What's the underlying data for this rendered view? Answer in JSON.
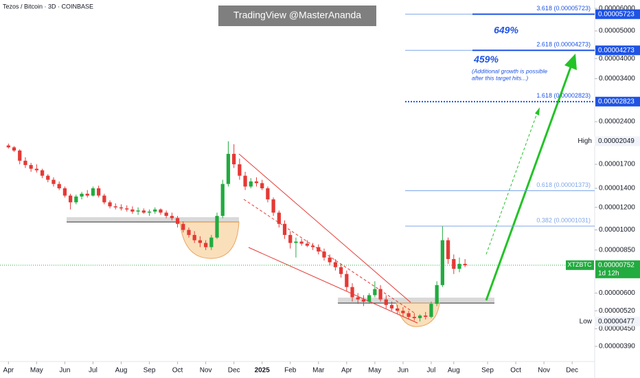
{
  "chart_data": {
    "type": "candlestick",
    "title": "Tezos / Bitcoin · 3D · COINBASE",
    "watermark": "TradingView @MasterAnanda",
    "log_scale": true,
    "up_color": "#22ab3f",
    "down_color": "#e53935",
    "open": [
      1.98e-05,
      1.95e-05,
      1.9e-05,
      1.75e-05,
      1.69e-05,
      1.64e-05,
      1.62e-05,
      1.55e-05,
      1.5e-05,
      1.45e-05,
      1.4e-05,
      1.32e-05,
      1.25e-05,
      1.31e-05,
      1.34e-05,
      1.32e-05,
      1.4e-05,
      1.32e-05,
      1.25e-05,
      1.21e-05,
      1.2e-05,
      1.19e-05,
      1.18e-05,
      1.16e-05,
      1.17e-05,
      1.15e-05,
      1.16e-05,
      1.18e-05,
      1.15e-05,
      1.12e-05,
      1.1e-05,
      1.05e-05,
      1e-05,
      9.6e-06,
      9.2e-06,
      9e-06,
      8.7e-06,
      9.4e-06,
      1.12e-05,
      1.45e-05,
      1.85e-05,
      1.7e-05,
      1.55e-05,
      1.42e-05,
      1.48e-05,
      1.46e-05,
      1.4e-05,
      1.28e-05,
      1.15e-05,
      1.05e-05,
      9.6e-06,
      9e-06,
      9.1e-06,
      8.95e-06,
      8.8e-06,
      8.7e-06,
      8.4e-06,
      8e-06,
      7.7e-06,
      7.4e-06,
      7e-06,
      6.3e-06,
      5.8e-06,
      5.7e-06,
      5.6e-06,
      5.9e-06,
      6.2e-06,
      5.7e-06,
      5.45e-06,
      5.3e-06,
      5.2e-06,
      5.1e-06,
      4.95e-06,
      4.9e-06,
      5e-06,
      4.95e-06,
      5.5e-06,
      6.4e-06,
      9.2e-06,
      7.9e-06,
      7.3e-06,
      7.6e-06
    ],
    "high": [
      2.01e-05,
      1.97e-05,
      1.92e-05,
      1.8e-05,
      1.72e-05,
      1.7e-05,
      1.64e-05,
      1.57e-05,
      1.53e-05,
      1.48e-05,
      1.42e-05,
      1.34e-05,
      1.33e-05,
      1.36e-05,
      1.38e-05,
      1.42e-05,
      1.43e-05,
      1.34e-05,
      1.27e-05,
      1.24e-05,
      1.23e-05,
      1.22e-05,
      1.21e-05,
      1.2e-05,
      1.19e-05,
      1.18e-05,
      1.2e-05,
      1.19e-05,
      1.17e-05,
      1.15e-05,
      1.12e-05,
      1.07e-05,
      1.02e-05,
      9.9e-06,
      9.5e-06,
      9.2e-06,
      9.6e-06,
      1.15e-05,
      1.5e-05,
      2.049e-05,
      2e-05,
      1.78e-05,
      1.6e-05,
      1.52e-05,
      1.53e-05,
      1.5e-05,
      1.42e-05,
      1.3e-05,
      1.17e-05,
      1.08e-05,
      9.9e-06,
      9.4e-06,
      9.3e-06,
      9.2e-06,
      9e-06,
      8.9e-06,
      8.6e-06,
      8.2e-06,
      7.9e-06,
      7.6e-06,
      7.2e-06,
      6.5e-06,
      6e-06,
      5.9e-06,
      6e-06,
      6.6e-06,
      6.4e-06,
      5.9e-06,
      5.6e-06,
      5.45e-06,
      5.35e-06,
      5.2e-06,
      5.1e-06,
      5.05e-06,
      5.15e-06,
      5.6e-06,
      6.6e-06,
      1.03e-05,
      9.4e-06,
      8.2e-06,
      8e-06,
      7.9e-06
    ],
    "low": [
      1.93e-05,
      1.88e-05,
      1.7e-05,
      1.65e-05,
      1.6e-05,
      1.59e-05,
      1.52e-05,
      1.47e-05,
      1.42e-05,
      1.38e-05,
      1.3e-05,
      1.18e-05,
      1.23e-05,
      1.28e-05,
      1.3e-05,
      1.31e-05,
      1.3e-05,
      1.23e-05,
      1.19e-05,
      1.18e-05,
      1.17e-05,
      1.16e-05,
      1.14e-05,
      1.13e-05,
      1.14e-05,
      1.12e-05,
      1.14e-05,
      1.13e-05,
      1.1e-05,
      1.08e-05,
      1.02e-05,
      9.8e-06,
      9.4e-06,
      9e-06,
      8.7e-06,
      8.5e-06,
      8.5e-06,
      9.3e-06,
      1.1e-05,
      1.42e-05,
      1.65e-05,
      1.5e-05,
      1.38e-05,
      1.4e-05,
      1.42e-05,
      1.38e-05,
      1.25e-05,
      1.12e-05,
      1.02e-05,
      9.3e-06,
      8.6e-06,
      8e-06,
      8.8e-06,
      8.7e-06,
      8.5e-06,
      8.2e-06,
      7.8e-06,
      7.5e-06,
      7.2e-06,
      6.8e-06,
      6.1e-06,
      5.6e-06,
      5.5e-06,
      5.4e-06,
      5.5e-06,
      5.8e-06,
      5.6e-06,
      5.3e-06,
      5.2e-06,
      5.05e-06,
      4.95e-06,
      4.85e-06,
      4.8e-06,
      4.77e-06,
      4.85e-06,
      4.9e-06,
      5.4e-06,
      6.3e-06,
      7.6e-06,
      7e-06,
      7.1e-06,
      7.4e-06
    ],
    "close": [
      1.95e-05,
      1.9e-05,
      1.75e-05,
      1.69e-05,
      1.64e-05,
      1.62e-05,
      1.55e-05,
      1.5e-05,
      1.45e-05,
      1.4e-05,
      1.32e-05,
      1.25e-05,
      1.31e-05,
      1.34e-05,
      1.32e-05,
      1.4e-05,
      1.32e-05,
      1.25e-05,
      1.21e-05,
      1.2e-05,
      1.19e-05,
      1.18e-05,
      1.16e-05,
      1.17e-05,
      1.15e-05,
      1.16e-05,
      1.18e-05,
      1.15e-05,
      1.12e-05,
      1.1e-05,
      1.05e-05,
      1e-05,
      9.6e-06,
      9.2e-06,
      9e-06,
      8.7e-06,
      9.4e-06,
      1.12e-05,
      1.45e-05,
      1.85e-05,
      1.7e-05,
      1.55e-05,
      1.42e-05,
      1.48e-05,
      1.46e-05,
      1.4e-05,
      1.28e-05,
      1.15e-05,
      1.05e-05,
      9.6e-06,
      9e-06,
      9.1e-06,
      8.95e-06,
      8.8e-06,
      8.7e-06,
      8.4e-06,
      8e-06,
      7.7e-06,
      7.4e-06,
      7e-06,
      6.3e-06,
      5.8e-06,
      5.7e-06,
      5.6e-06,
      5.9e-06,
      6.2e-06,
      5.7e-06,
      5.45e-06,
      5.3e-06,
      5.2e-06,
      5.1e-06,
      4.95e-06,
      4.9e-06,
      5e-06,
      4.95e-06,
      5.5e-06,
      6.4e-06,
      9.2e-06,
      7.9e-06,
      7.3e-06,
      7.6e-06,
      7.52e-06
    ],
    "xlim": [
      -1.5,
      104
    ],
    "xticks": [
      {
        "value": 0,
        "label": "Apr"
      },
      {
        "value": 5,
        "label": "May"
      },
      {
        "value": 10,
        "label": "Jun"
      },
      {
        "value": 15,
        "label": "Jul"
      },
      {
        "value": 20,
        "label": "Aug"
      },
      {
        "value": 25,
        "label": "Sep"
      },
      {
        "value": 30,
        "label": "Oct"
      },
      {
        "value": 35,
        "label": "Nov"
      },
      {
        "value": 40,
        "label": "Dec"
      },
      {
        "value": 45,
        "label": "2025"
      },
      {
        "value": 50,
        "label": "Feb"
      },
      {
        "value": 55,
        "label": "Mar"
      },
      {
        "value": 60,
        "label": "Apr"
      },
      {
        "value": 65,
        "label": "May"
      },
      {
        "value": 70,
        "label": "Jun"
      },
      {
        "value": 75,
        "label": "Jul"
      },
      {
        "value": 79,
        "label": "Aug"
      },
      {
        "value": 85,
        "label": "Sep"
      },
      {
        "value": 90,
        "label": "Oct"
      },
      {
        "value": 95,
        "label": "Nov"
      },
      {
        "value": 100,
        "label": "Dec"
      }
    ],
    "ylim": [
      3.45e-06,
      6.42e-05
    ],
    "yticks": [
      {
        "value": 6e-05,
        "label": "0.00006000"
      },
      {
        "value": 5e-05,
        "label": "0.00005000"
      },
      {
        "value": 4e-05,
        "label": "0.00004000"
      },
      {
        "value": 3.4e-05,
        "label": "0.00003400"
      },
      {
        "value": 2.4e-05,
        "label": "0.00002400"
      },
      {
        "value": 1.7e-05,
        "label": "0.00001700"
      },
      {
        "value": 1.4e-05,
        "label": "0.00001400"
      },
      {
        "value": 1.2e-05,
        "label": "0.00001200"
      },
      {
        "value": 1e-05,
        "label": "0.00001000"
      },
      {
        "value": 8.5e-06,
        "label": "0.00000850"
      },
      {
        "value": 6e-06,
        "label": "0.00000600"
      },
      {
        "value": 5.2e-06,
        "label": "0.00000520"
      },
      {
        "value": 4.5e-06,
        "label": "0.00000450"
      },
      {
        "value": 3.9e-06,
        "label": "0.00000390"
      }
    ],
    "levels": [
      {
        "label": "3.618 (0.00005723)",
        "value": 5.723e-05,
        "price_label": "0.00005723",
        "style": "solid",
        "color": "#1e53e5"
      },
      {
        "label": "2.618 (0.00004273)",
        "value": 4.273e-05,
        "price_label": "0.00004273",
        "style": "solid",
        "color": "#1e53e5"
      },
      {
        "label": "1.618 (0.00002823)",
        "value": 2.823e-05,
        "price_label": "0.00002823",
        "style": "dotted",
        "color": "#1e53e5"
      },
      {
        "label": "0.618 (0.00001373)",
        "value": 1.373e-05,
        "style": "thin",
        "color": "#7fa6e8"
      },
      {
        "label": "0.382 (0.00001031)",
        "value": 1.031e-05,
        "style": "thin",
        "color": "#7fa6e8"
      }
    ],
    "annotations": [
      {
        "text": "649%"
      },
      {
        "text": "459%",
        "note": [
          "(Additional growth is possible",
          "after this target hits...)"
        ]
      }
    ],
    "markers": [
      {
        "label": "High",
        "value": 2.049e-05,
        "price_label": "0.00002049"
      },
      {
        "label": "Low",
        "value": 4.77e-06,
        "price_label": "0.00000477"
      }
    ],
    "current": {
      "label": "XTZBTC",
      "value": 7.52e-06,
      "price_label": "0.00000752",
      "countdown": "1d 12h",
      "color": "#22ab3f"
    }
  }
}
